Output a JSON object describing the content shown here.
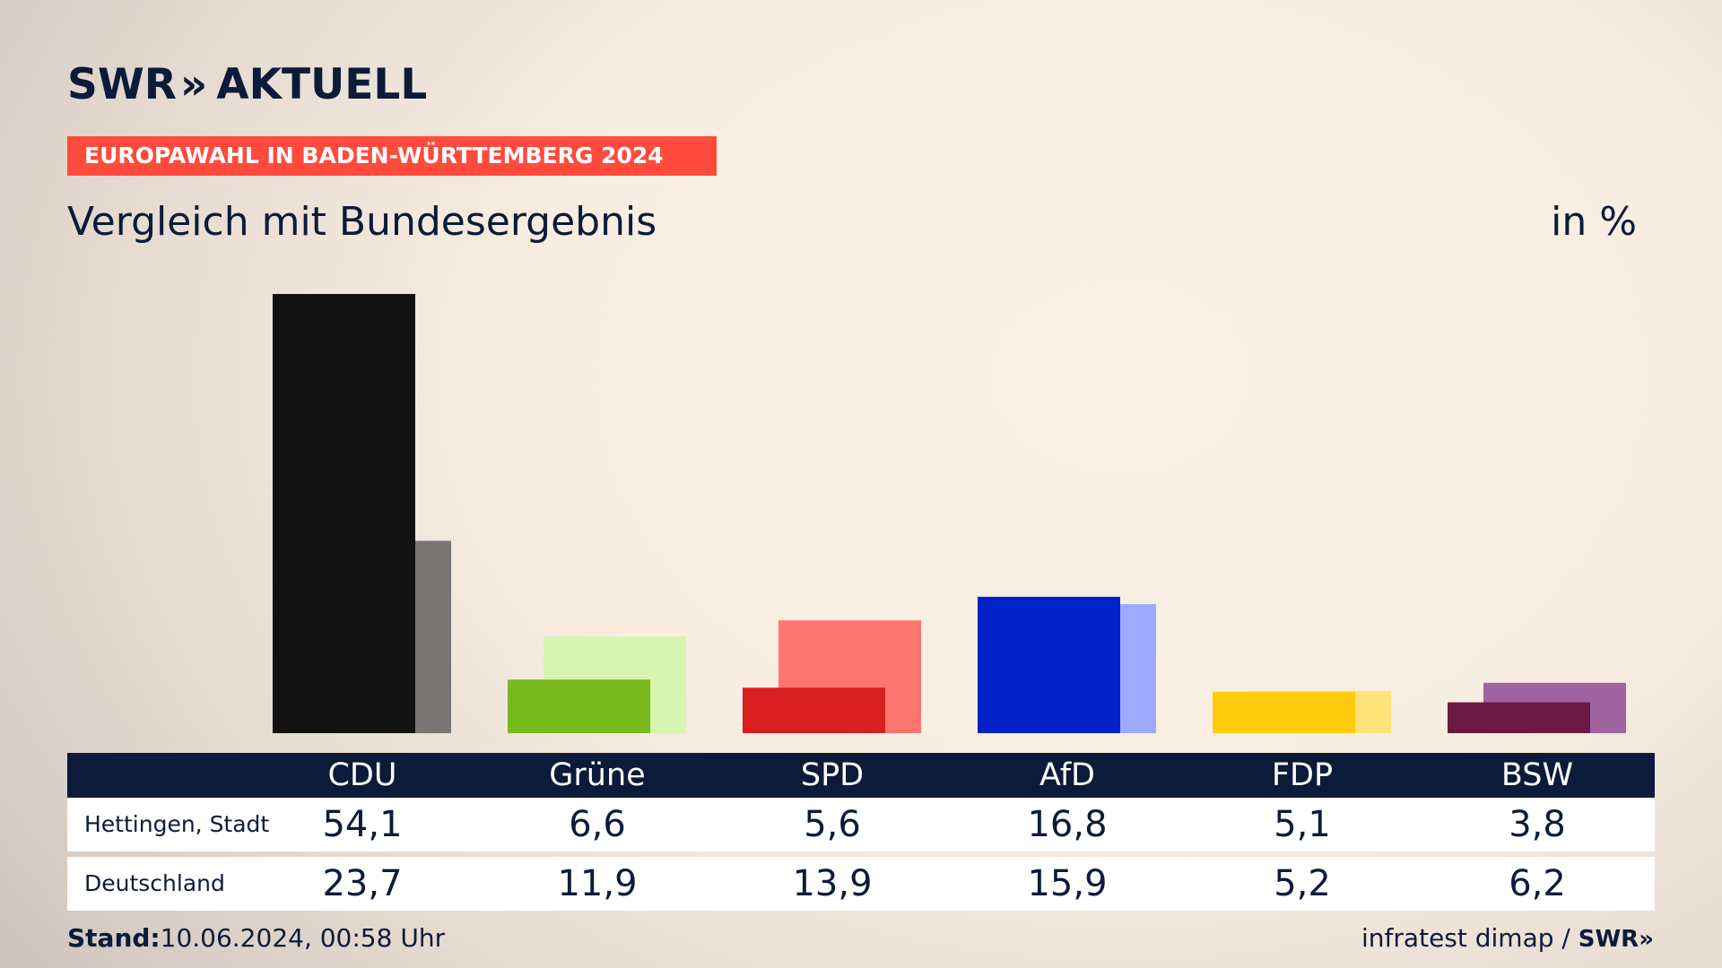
{
  "header": {
    "logo_text": "SWR",
    "logo_chevron": "»",
    "logo_suffix": "AKTUELL",
    "banner": "EUROPAWAHL IN BADEN-WÜRTTEMBERG 2024",
    "subtitle": "Vergleich mit Bundesergebnis",
    "unit": "in %"
  },
  "table": {
    "rows": [
      {
        "label": "Hettingen, Stadt",
        "values": [
          "54,1",
          "6,6",
          "5,6",
          "16,8",
          "5,1",
          "3,8"
        ]
      },
      {
        "label": "Deutschland",
        "values": [
          "23,7",
          "11,9",
          "13,9",
          "15,9",
          "5,2",
          "6,2"
        ]
      }
    ]
  },
  "footer": {
    "stand_label": "Stand:",
    "stand_value": "10.06.2024, 00:58 Uhr",
    "source": "infratest dimap /",
    "brand": "SWR»"
  },
  "chart_data": {
    "type": "bar",
    "categories": [
      "CDU",
      "Grüne",
      "SPD",
      "AfD",
      "FDP",
      "BSW"
    ],
    "series": [
      {
        "name": "Hettingen, Stadt",
        "values": [
          54.1,
          6.6,
          5.6,
          16.8,
          5.1,
          3.8
        ]
      },
      {
        "name": "Deutschland",
        "values": [
          23.7,
          11.9,
          13.9,
          15.9,
          5.2,
          6.2
        ]
      }
    ],
    "colors_local": [
      "#121212",
      "#78bb1e",
      "#d81e1e",
      "#0022c8",
      "#ffcc0f",
      "#6b1843"
    ],
    "colors_federal": [
      "#787574",
      "#d7f5b0",
      "#ff7570",
      "#9eaaff",
      "#ffe37a",
      "#a064a0"
    ],
    "ylim": [
      0,
      54.1
    ],
    "grid": false,
    "legend": "none"
  }
}
